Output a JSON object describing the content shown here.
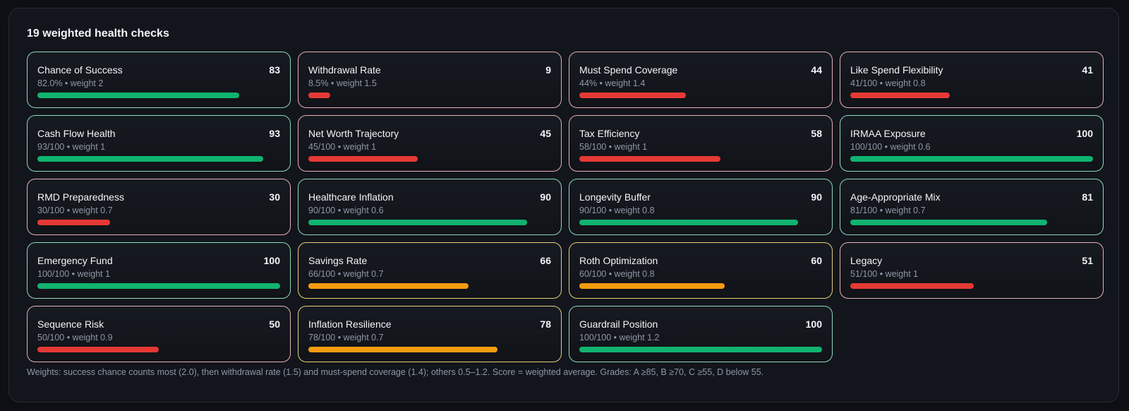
{
  "panel": {
    "title": "19 weighted health checks",
    "footnote": "Weights: success chance counts most (2.0), then withdrawal rate (1.5) and must-spend coverage (1.4); others 0.5–1.2. Score = weighted average. Grades: A ≥85, B ≥70, C ≥55, D below 55."
  },
  "colors": {
    "good_bar": "#10b36f",
    "bad_bar": "#e53935",
    "warn_bar": "#f59c10",
    "good_border": "#8ed9bd",
    "bad_border": "#e7b0b6",
    "warn_border": "#e8cf7a"
  },
  "checks": [
    {
      "name": "Chance of Success",
      "score": "83",
      "detail": "82.0% • weight 2",
      "fill": 83,
      "status": "good"
    },
    {
      "name": "Withdrawal Rate",
      "score": "9",
      "detail": "8.5% • weight 1.5",
      "fill": 9,
      "status": "bad"
    },
    {
      "name": "Must Spend Coverage",
      "score": "44",
      "detail": "44% • weight 1.4",
      "fill": 44,
      "status": "bad"
    },
    {
      "name": "Like Spend Flexibility",
      "score": "41",
      "detail": "41/100 • weight 0.8",
      "fill": 41,
      "status": "bad"
    },
    {
      "name": "Cash Flow Health",
      "score": "93",
      "detail": "93/100 • weight 1",
      "fill": 93,
      "status": "good"
    },
    {
      "name": "Net Worth Trajectory",
      "score": "45",
      "detail": "45/100 • weight 1",
      "fill": 45,
      "status": "bad"
    },
    {
      "name": "Tax Efficiency",
      "score": "58",
      "detail": "58/100 • weight 1",
      "fill": 58,
      "status": "bad"
    },
    {
      "name": "IRMAA Exposure",
      "score": "100",
      "detail": "100/100 • weight 0.6",
      "fill": 100,
      "status": "good"
    },
    {
      "name": "RMD Preparedness",
      "score": "30",
      "detail": "30/100 • weight 0.7",
      "fill": 30,
      "status": "bad"
    },
    {
      "name": "Healthcare Inflation",
      "score": "90",
      "detail": "90/100 • weight 0.6",
      "fill": 90,
      "status": "good"
    },
    {
      "name": "Longevity Buffer",
      "score": "90",
      "detail": "90/100 • weight 0.8",
      "fill": 90,
      "status": "good"
    },
    {
      "name": "Age-Appropriate Mix",
      "score": "81",
      "detail": "81/100 • weight 0.7",
      "fill": 81,
      "status": "good"
    },
    {
      "name": "Emergency Fund",
      "score": "100",
      "detail": "100/100 • weight 1",
      "fill": 100,
      "status": "good"
    },
    {
      "name": "Savings Rate",
      "score": "66",
      "detail": "66/100 • weight 0.7",
      "fill": 66,
      "status": "warn"
    },
    {
      "name": "Roth Optimization",
      "score": "60",
      "detail": "60/100 • weight 0.8",
      "fill": 60,
      "status": "warn"
    },
    {
      "name": "Legacy",
      "score": "51",
      "detail": "51/100 • weight 1",
      "fill": 51,
      "status": "bad"
    },
    {
      "name": "Sequence Risk",
      "score": "50",
      "detail": "50/100 • weight 0.9",
      "fill": 50,
      "status": "bad"
    },
    {
      "name": "Inflation Resilience",
      "score": "78",
      "detail": "78/100 • weight 0.7",
      "fill": 78,
      "status": "warn"
    },
    {
      "name": "Guardrail Position",
      "score": "100",
      "detail": "100/100 • weight 1.2",
      "fill": 100,
      "status": "good"
    }
  ]
}
